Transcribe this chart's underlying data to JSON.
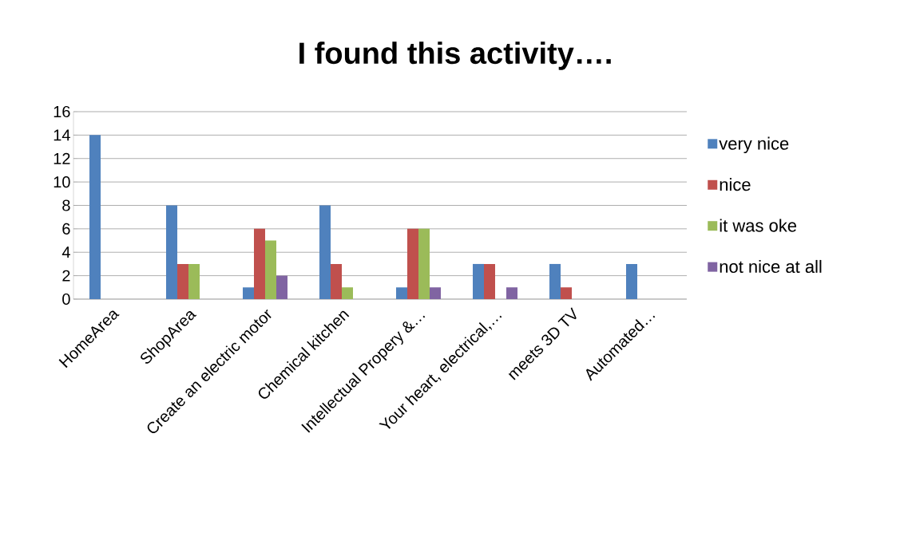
{
  "chart_data": {
    "type": "bar",
    "title": "I found this activity….",
    "categories": [
      "HomeArea",
      "ShopArea",
      "Create an electric motor",
      "Chemical kitchen",
      "Intellectual Propery &…",
      "Your heart, electrical,…",
      "meets 3D TV",
      "Automated…"
    ],
    "series": [
      {
        "name": "very nice",
        "color": "#4f81bd",
        "values": [
          14,
          8,
          1,
          8,
          1,
          3,
          3,
          3
        ]
      },
      {
        "name": "nice",
        "color": "#c0504d",
        "values": [
          0,
          3,
          6,
          3,
          6,
          3,
          1,
          0
        ]
      },
      {
        "name": "it was oke",
        "color": "#9bbb59",
        "values": [
          0,
          3,
          5,
          1,
          6,
          0,
          0,
          0
        ]
      },
      {
        "name": "not nice at all",
        "color": "#8064a2",
        "values": [
          0,
          0,
          2,
          0,
          1,
          1,
          0,
          0
        ]
      }
    ],
    "ylim": [
      0,
      16
    ],
    "yticks": [
      0,
      2,
      4,
      6,
      8,
      10,
      12,
      14,
      16
    ],
    "grid": "y",
    "legend": "right"
  }
}
